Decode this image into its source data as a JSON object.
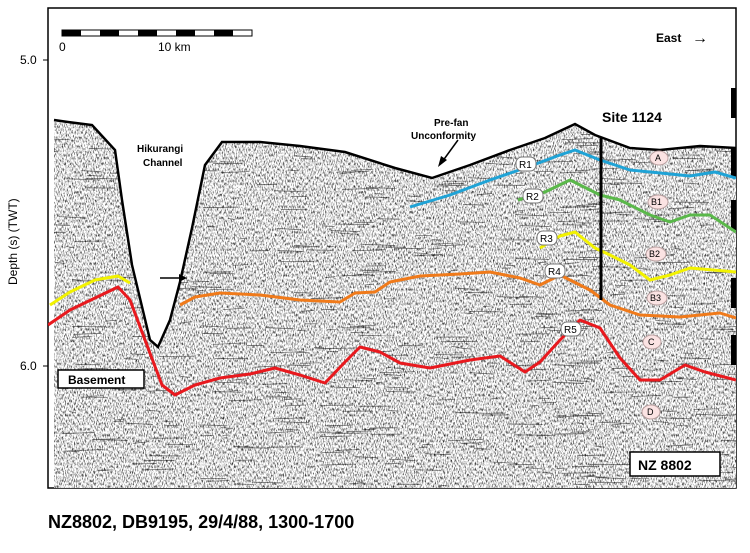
{
  "scale_bar": {
    "zero_label": "0",
    "end_label": "10 km"
  },
  "direction": {
    "label": "East",
    "arrow": "→"
  },
  "axis": {
    "ylabel": "Depth (s) (TWT)",
    "ticks": [
      {
        "value": "5.0"
      },
      {
        "value": "6.0"
      }
    ]
  },
  "labels": {
    "channel_line1": "Hikurangi",
    "channel_line2": "Channel",
    "unconf_line1": "Pre-fan",
    "unconf_line2": "Unconformity",
    "site": "Site 1124",
    "basement": "Basement",
    "line_id": "NZ 8802"
  },
  "reflectors": [
    {
      "name": "R1",
      "color": "#1fa3d6"
    },
    {
      "name": "R2",
      "color": "#5ab84a"
    },
    {
      "name": "R3",
      "color": "#f2f200"
    },
    {
      "name": "R4",
      "color": "#f07a1a"
    },
    {
      "name": "R5",
      "color": "#e8191e"
    }
  ],
  "units": [
    "A",
    "B1",
    "B2",
    "B3",
    "C",
    "D"
  ],
  "caption": "NZ8802, DB9195, 29/4/88, 1300-1700"
}
